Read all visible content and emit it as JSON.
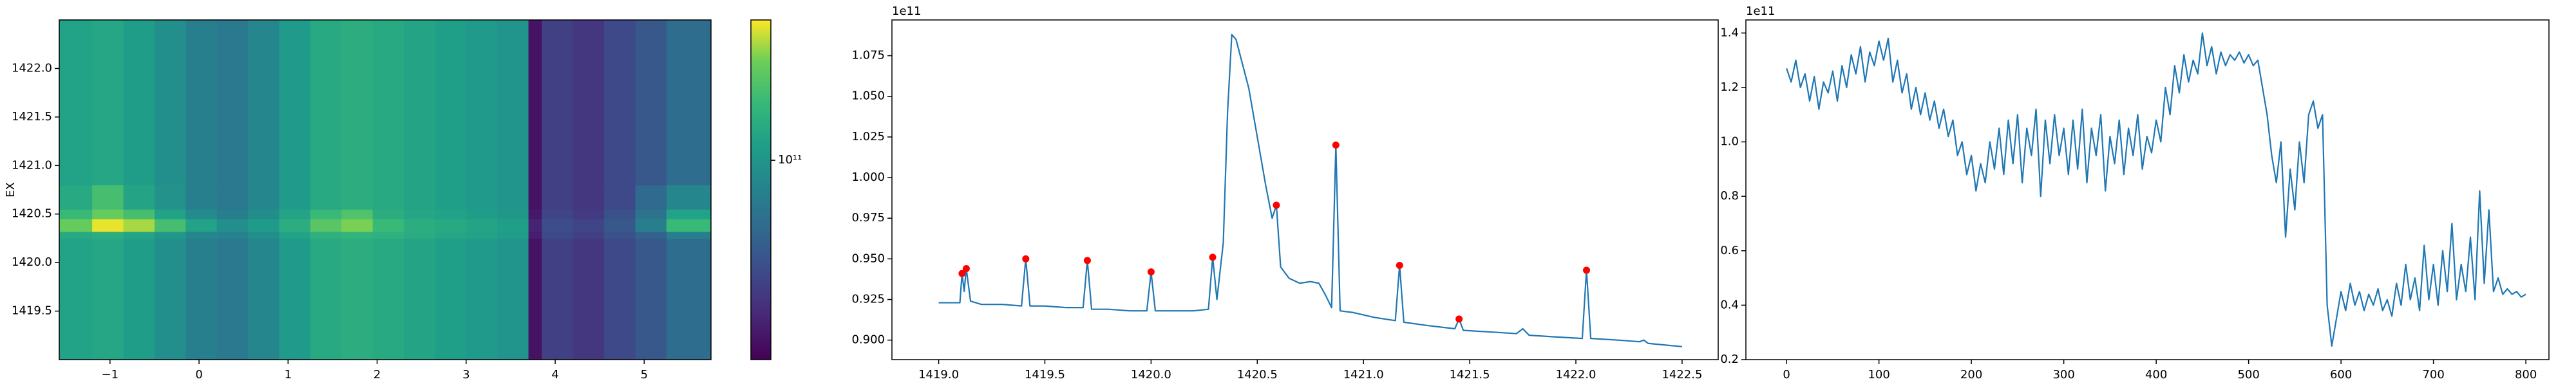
{
  "chart_data": [
    {
      "type": "heatmap",
      "ylabel": "EX",
      "xlim": [
        -1.57,
        5.75
      ],
      "ylim": [
        1419.0,
        1422.5
      ],
      "xticks": [
        {
          "value": -1,
          "label": "−1"
        },
        0,
        1,
        2,
        3,
        4,
        5
      ],
      "yticks": [
        {
          "value": 1419.5,
          "label": "1419.5"
        },
        {
          "value": 1420,
          "label": "1420.0"
        },
        {
          "value": 1420.5,
          "label": "1420.5"
        },
        {
          "value": 1421,
          "label": "1421.0"
        },
        {
          "value": 1421.5,
          "label": "1421.5"
        },
        {
          "value": 1422,
          "label": "1422.0"
        }
      ],
      "x_edges": [
        -1.57,
        -1.2,
        -0.85,
        -0.5,
        -0.15,
        0.2,
        0.55,
        0.9,
        1.25,
        1.6,
        1.95,
        2.3,
        2.65,
        3.0,
        3.35,
        3.7,
        3.85,
        4.2,
        4.55,
        4.9,
        5.25,
        5.75
      ],
      "y_edges": [
        1419.0,
        1420.25,
        1420.32,
        1420.45,
        1420.55,
        1420.8,
        1422.5
      ],
      "z": [
        [
          105000000000.0,
          107000000000.0,
          103000000000.0,
          98000000000.0,
          92000000000.0,
          90000000000.0,
          95000000000.0,
          102000000000.0,
          108000000000.0,
          110000000000.0,
          108000000000.0,
          106000000000.0,
          104000000000.0,
          102000000000.0,
          100000000000.0,
          65000000000.0,
          74000000000.0,
          72000000000.0,
          76000000000.0,
          80000000000.0,
          86000000000.0
        ],
        [
          108000000000.0,
          110000000000.0,
          106000000000.0,
          101000000000.0,
          95000000000.0,
          93000000000.0,
          98000000000.0,
          105000000000.0,
          111000000000.0,
          113000000000.0,
          111000000000.0,
          109000000000.0,
          107000000000.0,
          105000000000.0,
          103000000000.0,
          67000000000.0,
          76000000000.0,
          74000000000.0,
          78000000000.0,
          83000000000.0,
          92000000000.0
        ],
        [
          125000000000.0,
          138000000000.0,
          132000000000.0,
          118000000000.0,
          105000000000.0,
          98000000000.0,
          102000000000.0,
          110000000000.0,
          122000000000.0,
          128000000000.0,
          115000000000.0,
          110000000000.0,
          108000000000.0,
          106000000000.0,
          104000000000.0,
          68000000000.0,
          77000000000.0,
          75000000000.0,
          80000000000.0,
          92000000000.0,
          115000000000.0
        ],
        [
          115000000000.0,
          125000000000.0,
          118000000000.0,
          105000000000.0,
          96000000000.0,
          92000000000.0,
          97000000000.0,
          106000000000.0,
          115000000000.0,
          120000000000.0,
          110000000000.0,
          107000000000.0,
          105000000000.0,
          103000000000.0,
          101000000000.0,
          66000000000.0,
          75000000000.0,
          73000000000.0,
          78000000000.0,
          88000000000.0,
          105000000000.0
        ],
        [
          108000000000.0,
          118000000000.0,
          106000000000.0,
          99000000000.0,
          92000000000.0,
          90000000000.0,
          95000000000.0,
          102000000000.0,
          108000000000.0,
          110000000000.0,
          108000000000.0,
          106000000000.0,
          104000000000.0,
          102000000000.0,
          100000000000.0,
          65000000000.0,
          74000000000.0,
          72000000000.0,
          76000000000.0,
          85000000000.0,
          95000000000.0
        ],
        [
          105000000000.0,
          107000000000.0,
          103000000000.0,
          98000000000.0,
          92000000000.0,
          90000000000.0,
          95000000000.0,
          102000000000.0,
          108000000000.0,
          110000000000.0,
          108000000000.0,
          106000000000.0,
          104000000000.0,
          102000000000.0,
          100000000000.0,
          65000000000.0,
          74000000000.0,
          72000000000.0,
          76000000000.0,
          80000000000.0,
          86000000000.0
        ]
      ],
      "colormap": "viridis",
      "colorbar": {
        "lim": [
          62000000000.0,
          140000000000.0
        ],
        "log": true,
        "ticks": [
          {
            "value": 100000000000.0,
            "label": "10¹¹"
          }
        ]
      }
    },
    {
      "type": "line",
      "offset_label": "1e11",
      "xlim": [
        1418.78,
        1422.67
      ],
      "ylim": [
        0.888,
        1.097
      ],
      "xticks": [
        {
          "value": 1419,
          "label": "1419.0"
        },
        1419.5,
        {
          "value": 1420,
          "label": "1420.0"
        },
        1420.5,
        {
          "value": 1421,
          "label": "1421.0"
        },
        1421.5,
        {
          "value": 1422,
          "label": "1422.0"
        },
        1422.5
      ],
      "yticks": [
        {
          "value": 0.9,
          "label": "0.900"
        },
        {
          "value": 0.925,
          "label": "0.925"
        },
        {
          "value": 0.95,
          "label": "0.950"
        },
        {
          "value": 0.975,
          "label": "0.975"
        },
        {
          "value": 1,
          "label": "1.000"
        },
        {
          "value": 1.025,
          "label": "1.025"
        },
        {
          "value": 1.05,
          "label": "1.050"
        },
        {
          "value": 1.075,
          "label": "1.075"
        }
      ],
      "series": [
        {
          "style": "line",
          "color": "#1f77b4",
          "x": [
            1419.0,
            1419.05,
            1419.1,
            1419.11,
            1419.12,
            1419.13,
            1419.15,
            1419.2,
            1419.3,
            1419.39,
            1419.41,
            1419.43,
            1419.5,
            1419.6,
            1419.68,
            1419.7,
            1419.72,
            1419.8,
            1419.9,
            1419.98,
            1420.0,
            1420.02,
            1420.1,
            1420.2,
            1420.27,
            1420.29,
            1420.31,
            1420.34,
            1420.36,
            1420.38,
            1420.4,
            1420.43,
            1420.46,
            1420.5,
            1420.54,
            1420.57,
            1420.59,
            1420.61,
            1420.65,
            1420.7,
            1420.75,
            1420.79,
            1420.82,
            1420.85,
            1420.87,
            1420.89,
            1420.95,
            1421.05,
            1421.15,
            1421.17,
            1421.19,
            1421.3,
            1421.43,
            1421.45,
            1421.47,
            1421.6,
            1421.72,
            1421.75,
            1421.78,
            1421.9,
            1422.03,
            1422.05,
            1422.07,
            1422.2,
            1422.3,
            1422.32,
            1422.34,
            1422.5
          ],
          "values": [
            0.923,
            0.923,
            0.923,
            0.941,
            0.93,
            0.944,
            0.924,
            0.922,
            0.922,
            0.921,
            0.95,
            0.921,
            0.921,
            0.92,
            0.92,
            0.949,
            0.919,
            0.919,
            0.918,
            0.918,
            0.942,
            0.918,
            0.918,
            0.918,
            0.919,
            0.951,
            0.925,
            0.96,
            1.04,
            1.088,
            1.085,
            1.07,
            1.055,
            1.025,
            0.995,
            0.975,
            0.983,
            0.945,
            0.938,
            0.935,
            0.936,
            0.935,
            0.928,
            0.92,
            1.02,
            0.918,
            0.917,
            0.914,
            0.912,
            0.946,
            0.911,
            0.909,
            0.907,
            0.913,
            0.906,
            0.905,
            0.904,
            0.907,
            0.903,
            0.902,
            0.901,
            0.943,
            0.901,
            0.9,
            0.899,
            0.9,
            0.898,
            0.896
          ]
        },
        {
          "style": "markers",
          "color": "#ff0000",
          "x": [
            1419.11,
            1419.13,
            1419.41,
            1419.7,
            1420.0,
            1420.29,
            1420.59,
            1420.87,
            1421.17,
            1421.45,
            1422.05
          ],
          "values": [
            0.941,
            0.944,
            0.95,
            0.949,
            0.942,
            0.951,
            0.983,
            1.02,
            0.946,
            0.913,
            0.943
          ]
        }
      ]
    },
    {
      "type": "line",
      "offset_label": "1e11",
      "xlim": [
        -44,
        825
      ],
      "ylim": [
        0.2,
        1.448
      ],
      "xticks": [
        0,
        100,
        200,
        300,
        400,
        500,
        600,
        700,
        800
      ],
      "yticks": [
        0.2,
        0.4,
        0.6,
        0.8,
        {
          "value": 1,
          "label": "1.0"
        },
        1.2,
        1.4
      ],
      "series": [
        {
          "style": "line",
          "color": "#1f77b4",
          "x": [
            0,
            5,
            10,
            15,
            20,
            25,
            30,
            35,
            40,
            45,
            50,
            55,
            60,
            65,
            70,
            75,
            80,
            85,
            90,
            95,
            100,
            105,
            110,
            115,
            120,
            125,
            130,
            135,
            140,
            145,
            150,
            155,
            160,
            165,
            170,
            175,
            180,
            185,
            190,
            195,
            200,
            205,
            210,
            215,
            220,
            225,
            230,
            235,
            240,
            245,
            250,
            255,
            260,
            265,
            270,
            275,
            280,
            285,
            290,
            295,
            300,
            305,
            310,
            315,
            320,
            325,
            330,
            335,
            340,
            345,
            350,
            355,
            360,
            365,
            370,
            375,
            380,
            385,
            390,
            395,
            400,
            405,
            410,
            415,
            420,
            425,
            430,
            435,
            440,
            445,
            450,
            455,
            460,
            465,
            470,
            475,
            480,
            485,
            490,
            495,
            500,
            505,
            510,
            515,
            520,
            525,
            530,
            535,
            540,
            545,
            550,
            555,
            560,
            565,
            570,
            575,
            580,
            585,
            590,
            595,
            600,
            605,
            610,
            615,
            620,
            625,
            630,
            635,
            640,
            645,
            650,
            655,
            660,
            665,
            670,
            675,
            680,
            685,
            690,
            695,
            700,
            705,
            710,
            715,
            720,
            725,
            730,
            735,
            740,
            745,
            750,
            755,
            760,
            765,
            770,
            775,
            780,
            785,
            790,
            795,
            800
          ],
          "values": [
            1.27,
            1.22,
            1.3,
            1.2,
            1.25,
            1.15,
            1.24,
            1.12,
            1.22,
            1.18,
            1.26,
            1.15,
            1.28,
            1.2,
            1.32,
            1.25,
            1.35,
            1.22,
            1.33,
            1.28,
            1.37,
            1.3,
            1.38,
            1.22,
            1.3,
            1.18,
            1.25,
            1.12,
            1.2,
            1.1,
            1.18,
            1.08,
            1.15,
            1.05,
            1.12,
            1.02,
            1.08,
            0.95,
            1.0,
            0.88,
            0.95,
            0.82,
            0.92,
            0.85,
            1.0,
            0.9,
            1.05,
            0.88,
            1.08,
            0.92,
            1.1,
            0.85,
            1.05,
            0.95,
            1.12,
            0.8,
            1.08,
            0.92,
            1.1,
            0.95,
            1.05,
            0.88,
            1.08,
            0.9,
            1.12,
            0.85,
            1.05,
            0.95,
            1.1,
            0.82,
            1.02,
            0.92,
            1.08,
            0.88,
            1.05,
            0.95,
            1.1,
            0.9,
            1.02,
            0.96,
            1.08,
            1.0,
            1.2,
            1.1,
            1.28,
            1.18,
            1.32,
            1.22,
            1.3,
            1.25,
            1.4,
            1.28,
            1.35,
            1.25,
            1.33,
            1.28,
            1.32,
            1.3,
            1.33,
            1.29,
            1.32,
            1.28,
            1.3,
            1.2,
            1.1,
            0.95,
            0.85,
            1.0,
            0.65,
            0.9,
            0.75,
            1.0,
            0.85,
            1.1,
            1.15,
            1.05,
            1.1,
            0.4,
            0.25,
            0.35,
            0.45,
            0.38,
            0.48,
            0.4,
            0.45,
            0.38,
            0.44,
            0.4,
            0.46,
            0.38,
            0.42,
            0.36,
            0.48,
            0.4,
            0.55,
            0.42,
            0.5,
            0.38,
            0.62,
            0.42,
            0.55,
            0.4,
            0.6,
            0.45,
            0.7,
            0.42,
            0.55,
            0.45,
            0.65,
            0.42,
            0.82,
            0.48,
            0.75,
            0.45,
            0.5,
            0.44,
            0.46,
            0.44,
            0.45,
            0.43,
            0.44
          ]
        }
      ]
    }
  ]
}
